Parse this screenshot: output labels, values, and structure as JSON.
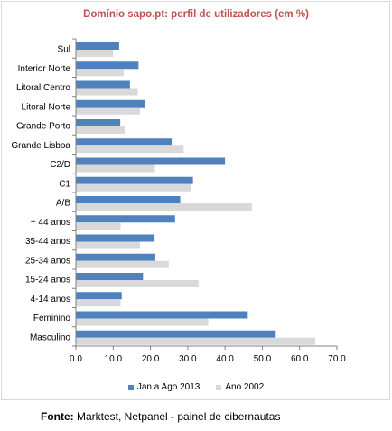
{
  "chart_data": {
    "type": "bar",
    "orientation": "horizontal",
    "title": "Domínio sapo.pt: perfil de utilizadores (em %)",
    "categories": [
      "Sul",
      "Interior Norte",
      "Litoral Centro",
      "Litoral Norte",
      "Grande Porto",
      "Grande Lisboa",
      "C2/D",
      "C1",
      "A/B",
      "+ 44 anos",
      "35-44 anos",
      "25-34 anos",
      "15-24 anos",
      "4-14 anos",
      "Feminino",
      "Masculino"
    ],
    "series": [
      {
        "name": "Jan a Ago 2013",
        "color": "#4f81bd",
        "values": [
          11.6,
          16.8,
          14.5,
          18.4,
          11.9,
          25.7,
          40.0,
          31.4,
          28.0,
          26.6,
          21.1,
          21.3,
          18.0,
          12.3,
          46.1,
          53.6
        ]
      },
      {
        "name": "Ano 2002",
        "color": "#d9d9d9",
        "values": [
          10.0,
          12.8,
          16.6,
          17.2,
          13.1,
          28.9,
          21.2,
          30.8,
          47.2,
          12.0,
          17.2,
          24.9,
          32.9,
          12.0,
          35.5,
          64.2
        ]
      }
    ],
    "xlim": [
      0,
      70
    ],
    "xticks": [
      "0.0",
      "10.0",
      "20.0",
      "30.0",
      "40.0",
      "50.0",
      "60.0",
      "70.0"
    ],
    "legend_position": "bottom",
    "grid": false
  },
  "footer": {
    "source_label": "Fonte:",
    "source_text": " Marktest, Netpanel - painel de cibernautas"
  }
}
